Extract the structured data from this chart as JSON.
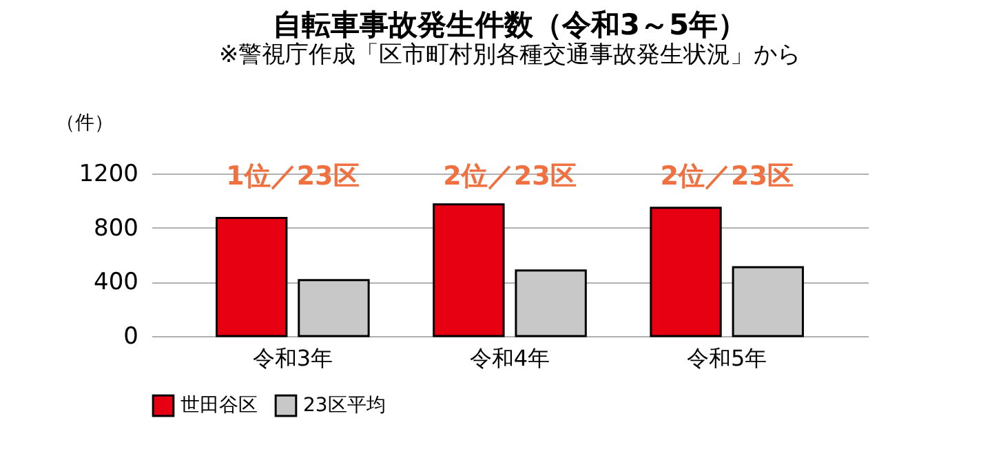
{
  "chart_data": {
    "type": "bar",
    "title": "自転車事故発生件数（令和3～5年）",
    "subtitle": "※警視庁作成「区市町村別各種交通事故発生状況」から",
    "ylabel": "（件）",
    "categories": [
      "令和3年",
      "令和4年",
      "令和5年"
    ],
    "series": [
      {
        "name": "世田谷区",
        "color": "#e60012",
        "values": [
          872,
          973,
          947
        ]
      },
      {
        "name": "23区平均",
        "color": "#c8c8c8",
        "values": [
          413,
          484,
          509
        ]
      }
    ],
    "ylim": [
      0,
      1200
    ],
    "yticks": [
      0,
      400,
      800,
      1200
    ],
    "grid": "y",
    "legend": "bottom",
    "annotations": [
      "1位／23区",
      "2位／23区",
      "2位／23区"
    ]
  }
}
